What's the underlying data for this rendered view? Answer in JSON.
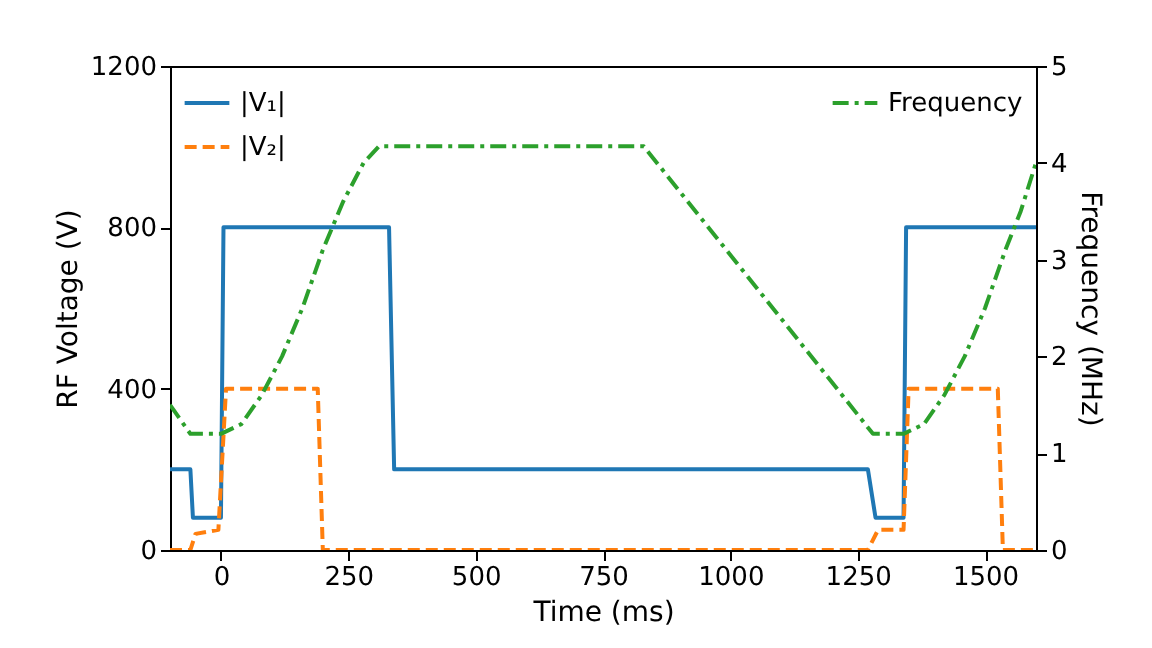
{
  "chart_data": {
    "type": "line",
    "xlabel": "Time (ms)",
    "ylabel": "RF Voltage (V)",
    "y2label": "Frequency (MHz)",
    "xlim": [
      -100,
      1600
    ],
    "xticks": [
      0,
      250,
      500,
      750,
      1000,
      1250,
      1500
    ],
    "ylim": [
      0,
      1200
    ],
    "yticks": [
      0,
      400,
      800,
      1200
    ],
    "y2lim": [
      0,
      5
    ],
    "y2ticks": [
      0,
      1,
      2,
      3,
      4,
      5
    ],
    "grid": false,
    "legend": "top left",
    "marker": "none",
    "series": [
      {
        "name": "|V₁|",
        "color": "#1f77b4",
        "line_style": "solid",
        "x": [
          -100,
          -60,
          -55,
          0,
          5,
          330,
          340,
          1270,
          1285,
          1340,
          1345,
          1600
        ],
        "values": [
          200,
          200,
          80,
          80,
          800,
          800,
          200,
          200,
          80,
          80,
          800,
          800
        ]
      },
      {
        "name": "|V₂|",
        "color": "#ff7f0e",
        "line_style": "dashed",
        "x": [
          -100,
          -60,
          -50,
          -5,
          10,
          190,
          200,
          1270,
          1290,
          1340,
          1350,
          1525,
          1535,
          1600
        ],
        "values": [
          0,
          0,
          40,
          50,
          400,
          400,
          0,
          0,
          50,
          50,
          400,
          400,
          0,
          0
        ]
      },
      {
        "name": "Frequency",
        "color": "#2ca02c",
        "line_style": "dashdot",
        "axis": "y2",
        "x": [
          -100,
          -60,
          0,
          40,
          80,
          120,
          160,
          200,
          240,
          280,
          310,
          830,
          1280,
          1340,
          1380,
          1420,
          1460,
          1500,
          1540,
          1570,
          1600
        ],
        "values": [
          1.5,
          1.2,
          1.2,
          1.3,
          1.6,
          2.0,
          2.5,
          3.1,
          3.6,
          4.0,
          4.17,
          4.17,
          1.2,
          1.2,
          1.3,
          1.6,
          2.0,
          2.5,
          3.1,
          3.5,
          4.0
        ]
      }
    ]
  }
}
